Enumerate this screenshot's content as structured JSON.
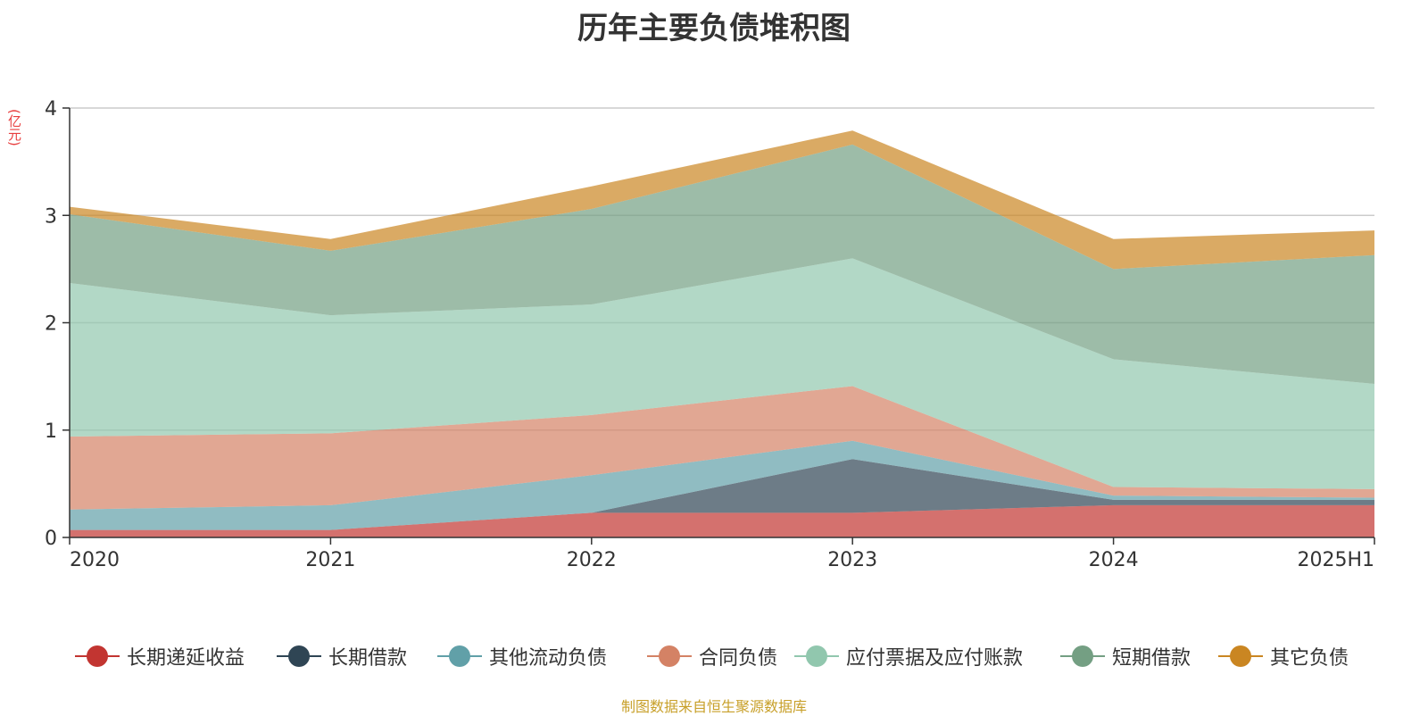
{
  "title": "历年主要负债堆积图",
  "source": "制图数据来自恒生聚源数据库",
  "chart_data": {
    "type": "area",
    "stacked": true,
    "title": "历年主要负债堆积图",
    "unit_label": "(亿元)",
    "categories": [
      "2020",
      "2021",
      "2022",
      "2023",
      "2024",
      "2025H1"
    ],
    "ylim": [
      0,
      4
    ],
    "yticks": [
      0,
      1,
      2,
      3,
      4
    ],
    "grid": true,
    "legend_position": "bottom",
    "series": [
      {
        "name": "长期递延收益",
        "color": "#c23531",
        "values": [
          0.07,
          0.07,
          0.23,
          0.23,
          0.3,
          0.3
        ]
      },
      {
        "name": "长期借款",
        "color": "#2f4554",
        "values": [
          0,
          0,
          0,
          0.5,
          0.05,
          0.05
        ]
      },
      {
        "name": "其他流动负债",
        "color": "#61a0a8",
        "values": [
          0.19,
          0.23,
          0.35,
          0.17,
          0.04,
          0.02
        ]
      },
      {
        "name": "合同负债",
        "color": "#d48265",
        "values": [
          0.68,
          0.67,
          0.56,
          0.51,
          0.08,
          0.08
        ]
      },
      {
        "name": "应付票据及应付账款",
        "color": "#91c7ae",
        "values": [
          1.43,
          1.1,
          1.03,
          1.19,
          1.19,
          0.98
        ]
      },
      {
        "name": "短期借款",
        "color": "#749f83",
        "values": [
          0.64,
          0.6,
          0.89,
          1.06,
          0.84,
          1.2
        ]
      },
      {
        "name": "其它负债",
        "color": "#ca8622",
        "values": [
          0.07,
          0.11,
          0.21,
          0.13,
          0.28,
          0.23
        ]
      }
    ]
  }
}
